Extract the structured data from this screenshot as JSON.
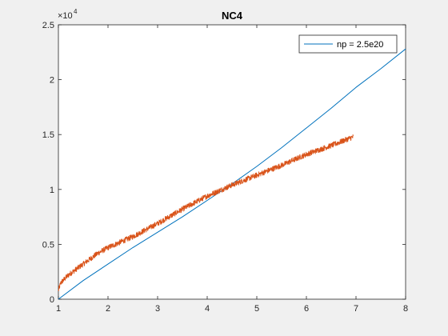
{
  "chart_data": {
    "type": "line",
    "title": "NC4",
    "xlabel": "",
    "ylabel": "",
    "xlim": [
      1,
      8
    ],
    "ylim": [
      0,
      25000
    ],
    "x_ticks": [
      "1",
      "2",
      "3",
      "4",
      "5",
      "6",
      "7",
      "8"
    ],
    "y_ticks": [
      "0",
      "0.5",
      "1",
      "1.5",
      "2",
      "2.5"
    ],
    "y_exponent_base": "×10",
    "y_exponent_power": "4",
    "grid": false,
    "legend_position": "top-right",
    "series": [
      {
        "name": "np = 2.5e20",
        "color": "#0072BD",
        "style": "smooth",
        "x": [
          1.0,
          1.5,
          2.0,
          2.5,
          3.0,
          3.5,
          4.0,
          4.5,
          5.0,
          5.5,
          6.0,
          6.5,
          7.0,
          7.5,
          8.0
        ],
        "y": [
          0,
          1700,
          3200,
          4700,
          6100,
          7500,
          9000,
          10500,
          12100,
          13800,
          15600,
          17400,
          19300,
          21000,
          22800
        ]
      },
      {
        "name": "",
        "color": "#D95319",
        "style": "noisy",
        "noise_amplitude": 250,
        "x": [
          1.0,
          1.05,
          1.2,
          1.5,
          1.8,
          2.0,
          2.5,
          3.0,
          3.5,
          4.0,
          4.5,
          5.0,
          5.5,
          6.0,
          6.5,
          6.95
        ],
        "y": [
          800,
          1500,
          2200,
          3200,
          4200,
          4700,
          5700,
          6900,
          8200,
          9400,
          10400,
          11300,
          12200,
          13200,
          14000,
          14800
        ]
      }
    ]
  }
}
